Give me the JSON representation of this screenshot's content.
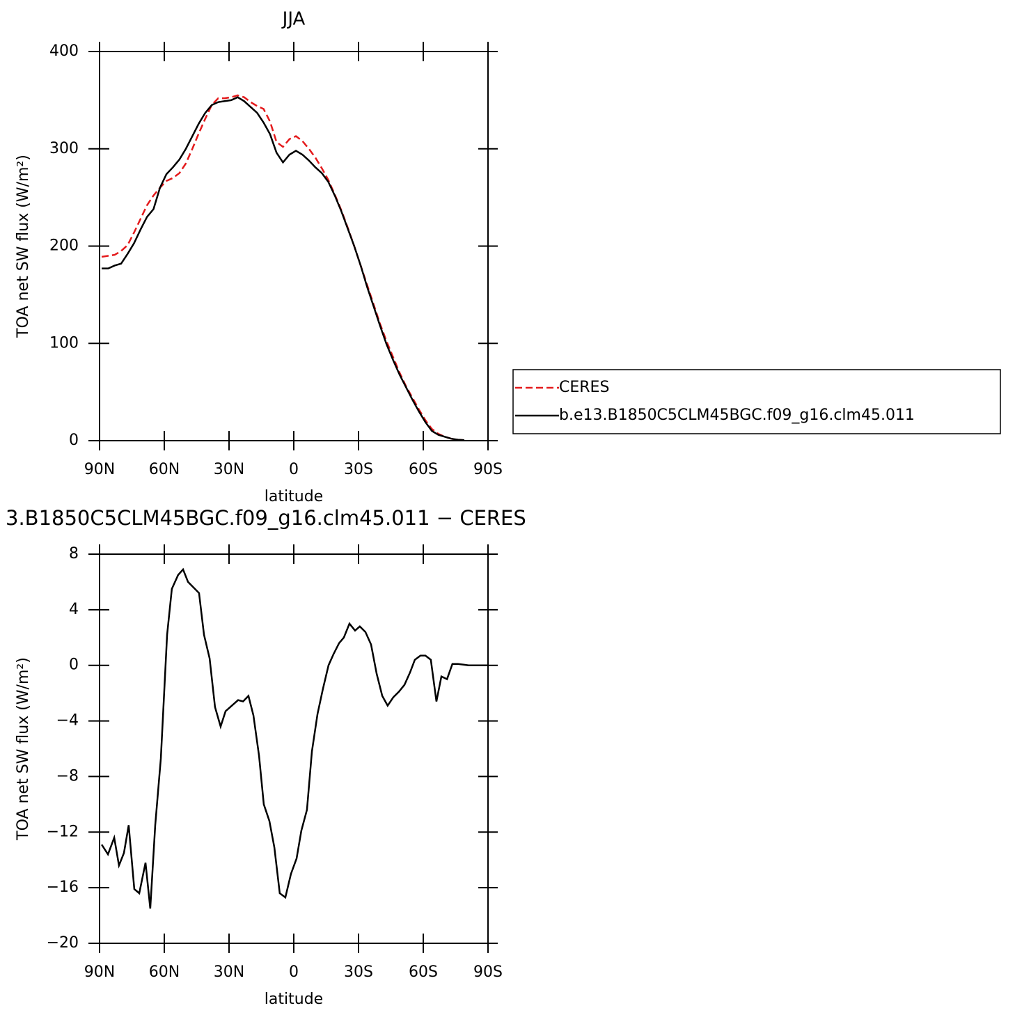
{
  "chart_data": [
    {
      "type": "line",
      "title": "JJA",
      "xlabel": "latitude",
      "ylabel": "TOA net SW flux (W/m²)",
      "x": [
        89,
        86,
        83,
        80,
        77,
        74,
        71,
        68,
        65,
        62,
        59,
        56,
        53,
        50,
        47,
        44,
        41,
        38,
        35,
        32,
        29,
        26,
        23,
        20,
        17,
        14,
        11,
        8,
        5,
        2,
        -1,
        -4,
        -7,
        -10,
        -13,
        -16,
        -19,
        -22,
        -25,
        -28,
        -31,
        -34,
        -37,
        -40,
        -43,
        -46,
        -49,
        -52,
        -55,
        -58,
        -61,
        -64,
        -67,
        -70,
        -73,
        -76,
        -79,
        -82,
        -85,
        -88
      ],
      "series": [
        {
          "name": "CERES",
          "color": "#e41a1c",
          "style": "dashed",
          "values": [
            189,
            190,
            191,
            195,
            201,
            214,
            228,
            242,
            252,
            260,
            267,
            270,
            275,
            285,
            300,
            316,
            331,
            345,
            352,
            352,
            353,
            355,
            353,
            348,
            344,
            341,
            328,
            307,
            302,
            310,
            313,
            308,
            300,
            291,
            280,
            268,
            253,
            237,
            219,
            200,
            180,
            160,
            140,
            120,
            102,
            86,
            70,
            56,
            44,
            32,
            21,
            12,
            7,
            4,
            2,
            1,
            0.5,
            null,
            null,
            null
          ]
        },
        {
          "name": "b.e13.B1850C5CLM45BGC.f09_g16.clm45.011",
          "color": "#000000",
          "style": "solid",
          "values": [
            177,
            177,
            180,
            182,
            192,
            203,
            217,
            230,
            238,
            260,
            274,
            281,
            289,
            300,
            313,
            326,
            337,
            345,
            348,
            349,
            350,
            353,
            349,
            343,
            337,
            327,
            315,
            296,
            286,
            294,
            298,
            294,
            288,
            281,
            275,
            266,
            252,
            236,
            218,
            200,
            180,
            158,
            138,
            118,
            99,
            83,
            68,
            55,
            42,
            30,
            19,
            10,
            6,
            4,
            2,
            1,
            0.5,
            null,
            null,
            null
          ]
        }
      ],
      "xlim": [
        90,
        -90
      ],
      "xticks": [
        {
          "value": 90,
          "label": "90N"
        },
        {
          "value": 60,
          "label": "60N"
        },
        {
          "value": 30,
          "label": "30N"
        },
        0,
        {
          "value": -30,
          "label": "30S"
        },
        {
          "value": -60,
          "label": "60S"
        },
        {
          "value": -90,
          "label": "90S"
        }
      ],
      "ylim": [
        0,
        400
      ],
      "yticks": [
        0,
        100,
        200,
        300,
        400
      ],
      "legend": "right"
    },
    {
      "type": "line",
      "title": "3.B1850C5CLM45BGC.f09_g16.clm45.011 − CERES",
      "xlabel": "latitude",
      "ylabel": "TOA net SW flux (W/m²)",
      "x": [
        89.0,
        86.1,
        83.2,
        81.0,
        78.7,
        76.5,
        73.9,
        71.6,
        68.7,
        66.5,
        64.2,
        61.6,
        58.7,
        56.5,
        53.6,
        51.3,
        49.0,
        43.9,
        41.6,
        39.0,
        36.5,
        33.9,
        31.6,
        25.8,
        23.5,
        21.0,
        18.7,
        16.1,
        13.9,
        11.3,
        9.0,
        6.5,
        3.9,
        1.3,
        -1.3,
        -3.5,
        -6.1,
        -8.4,
        -11.0,
        -13.5,
        -16.1,
        -18.4,
        -21.0,
        -23.2,
        -25.8,
        -28.4,
        -30.6,
        -33.2,
        -35.8,
        -38.4,
        -41.0,
        -43.5,
        -46.1,
        -48.7,
        -51.3,
        -53.9,
        -56.1,
        -58.7,
        -61.0,
        -63.5,
        -66.1,
        -68.4,
        -71.0,
        -73.5,
        -76.1,
        -78.7,
        -81.0,
        -83.5,
        -86.5,
        -90.0
      ],
      "series": [
        {
          "name": null,
          "color": "#000000",
          "style": "solid",
          "values": [
            -12.9,
            -13.6,
            -12.4,
            -14.4,
            -13.5,
            -11.5,
            -16.1,
            -16.4,
            -14.2,
            -17.5,
            -11.5,
            -6.7,
            2.2,
            5.5,
            6.5,
            6.9,
            6.0,
            5.2,
            2.2,
            0.5,
            -3.0,
            -4.4,
            -3.3,
            -2.5,
            -2.6,
            -2.2,
            -3.6,
            -6.5,
            -10.0,
            -11.2,
            -13.1,
            -16.4,
            -16.7,
            -15.0,
            -13.9,
            -11.9,
            -10.4,
            -6.2,
            -3.5,
            -1.7,
            0,
            0.8,
            1.6,
            2.0,
            3.0,
            2.5,
            2.8,
            2.4,
            1.5,
            -0.6,
            -2.2,
            -2.9,
            -2.3,
            -1.9,
            -1.4,
            -0.5,
            0.4,
            0.7,
            0.7,
            0.4,
            -2.6,
            -0.8,
            -1.0,
            0.1,
            0.1,
            0.05,
            0,
            0,
            0,
            0
          ]
        }
      ],
      "xlim": [
        90,
        -90
      ],
      "xticks": [
        {
          "value": 90,
          "label": "90N"
        },
        {
          "value": 60,
          "label": "60N"
        },
        {
          "value": 30,
          "label": "30N"
        },
        0,
        {
          "value": -30,
          "label": "30S"
        },
        {
          "value": -60,
          "label": "60S"
        },
        {
          "value": -90,
          "label": "90S"
        }
      ],
      "ylim": [
        -20,
        8
      ],
      "yticks": [
        {
          "value": -20,
          "label": "−20"
        },
        {
          "value": -16,
          "label": "−16"
        },
        {
          "value": -12,
          "label": "−12"
        },
        {
          "value": -8,
          "label": "−8"
        },
        {
          "value": -4,
          "label": "−4"
        },
        0,
        4,
        8
      ]
    }
  ]
}
